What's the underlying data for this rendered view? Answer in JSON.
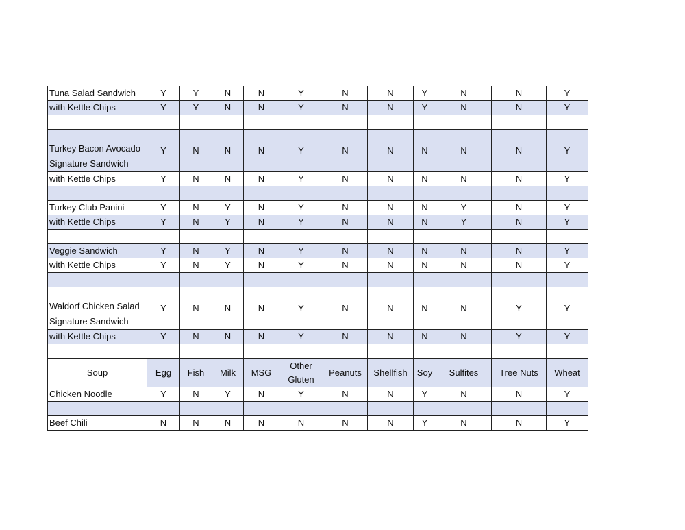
{
  "colors": {
    "shaded": "#dae0f2",
    "border": "#222222"
  },
  "header": {
    "category": "Soup",
    "allergens": [
      "Egg",
      "Fish",
      "Milk",
      "MSG",
      "Other Gluten",
      "Peanuts",
      "Shellfish",
      "Soy",
      "Sulfites",
      "Tree Nuts",
      "Wheat"
    ]
  },
  "rows": [
    {
      "name": [
        "Tuna Salad Sandwich"
      ],
      "values": [
        "Y",
        "Y",
        "N",
        "N",
        "Y",
        "N",
        "N",
        "Y",
        "N",
        "N",
        "Y"
      ],
      "shaded": false
    },
    {
      "name": [
        "with Kettle Chips"
      ],
      "values": [
        "Y",
        "Y",
        "N",
        "N",
        "Y",
        "N",
        "N",
        "Y",
        "N",
        "N",
        "Y"
      ],
      "shaded": true
    },
    {
      "name": [],
      "values": [],
      "shaded": false
    },
    {
      "name": [
        "Turkey Bacon Avocado",
        "Signature Sandwich"
      ],
      "values": [
        "Y",
        "N",
        "N",
        "N",
        "Y",
        "N",
        "N",
        "N",
        "N",
        "N",
        "Y"
      ],
      "shaded": true
    },
    {
      "name": [
        "with Kettle Chips"
      ],
      "values": [
        "Y",
        "N",
        "N",
        "N",
        "Y",
        "N",
        "N",
        "N",
        "N",
        "N",
        "Y"
      ],
      "shaded": false
    },
    {
      "name": [],
      "values": [],
      "shaded": true
    },
    {
      "name": [
        "Turkey Club Panini"
      ],
      "values": [
        "Y",
        "N",
        "Y",
        "N",
        "Y",
        "N",
        "N",
        "N",
        "Y",
        "N",
        "Y"
      ],
      "shaded": false
    },
    {
      "name": [
        "with Kettle Chips"
      ],
      "values": [
        "Y",
        "N",
        "Y",
        "N",
        "Y",
        "N",
        "N",
        "N",
        "Y",
        "N",
        "Y"
      ],
      "shaded": true
    },
    {
      "name": [],
      "values": [],
      "shaded": false
    },
    {
      "name": [
        "Veggie Sandwich"
      ],
      "values": [
        "Y",
        "N",
        "Y",
        "N",
        "Y",
        "N",
        "N",
        "N",
        "N",
        "N",
        "Y"
      ],
      "shaded": true
    },
    {
      "name": [
        "with Kettle Chips"
      ],
      "values": [
        "Y",
        "N",
        "Y",
        "N",
        "Y",
        "N",
        "N",
        "N",
        "N",
        "N",
        "Y"
      ],
      "shaded": false
    },
    {
      "name": [],
      "values": [],
      "shaded": true
    },
    {
      "name": [
        "Waldorf Chicken Salad",
        "Signature Sandwich"
      ],
      "values": [
        "Y",
        "N",
        "N",
        "N",
        "Y",
        "N",
        "N",
        "N",
        "N",
        "Y",
        "Y"
      ],
      "shaded": false
    },
    {
      "name": [
        "with Kettle Chips"
      ],
      "values": [
        "Y",
        "N",
        "N",
        "N",
        "Y",
        "N",
        "N",
        "N",
        "N",
        "Y",
        "Y"
      ],
      "shaded": true
    },
    {
      "name": [],
      "values": [],
      "shaded": false
    }
  ],
  "soup_rows": [
    {
      "name": [
        "Chicken Noodle"
      ],
      "values": [
        "Y",
        "N",
        "Y",
        "N",
        "Y",
        "N",
        "N",
        "Y",
        "N",
        "N",
        "Y"
      ],
      "shaded": false
    },
    {
      "name": [],
      "values": [],
      "shaded": true
    },
    {
      "name": [
        "Beef Chili"
      ],
      "values": [
        "N",
        "N",
        "N",
        "N",
        "N",
        "N",
        "N",
        "Y",
        "N",
        "N",
        "Y"
      ],
      "shaded": false
    }
  ]
}
